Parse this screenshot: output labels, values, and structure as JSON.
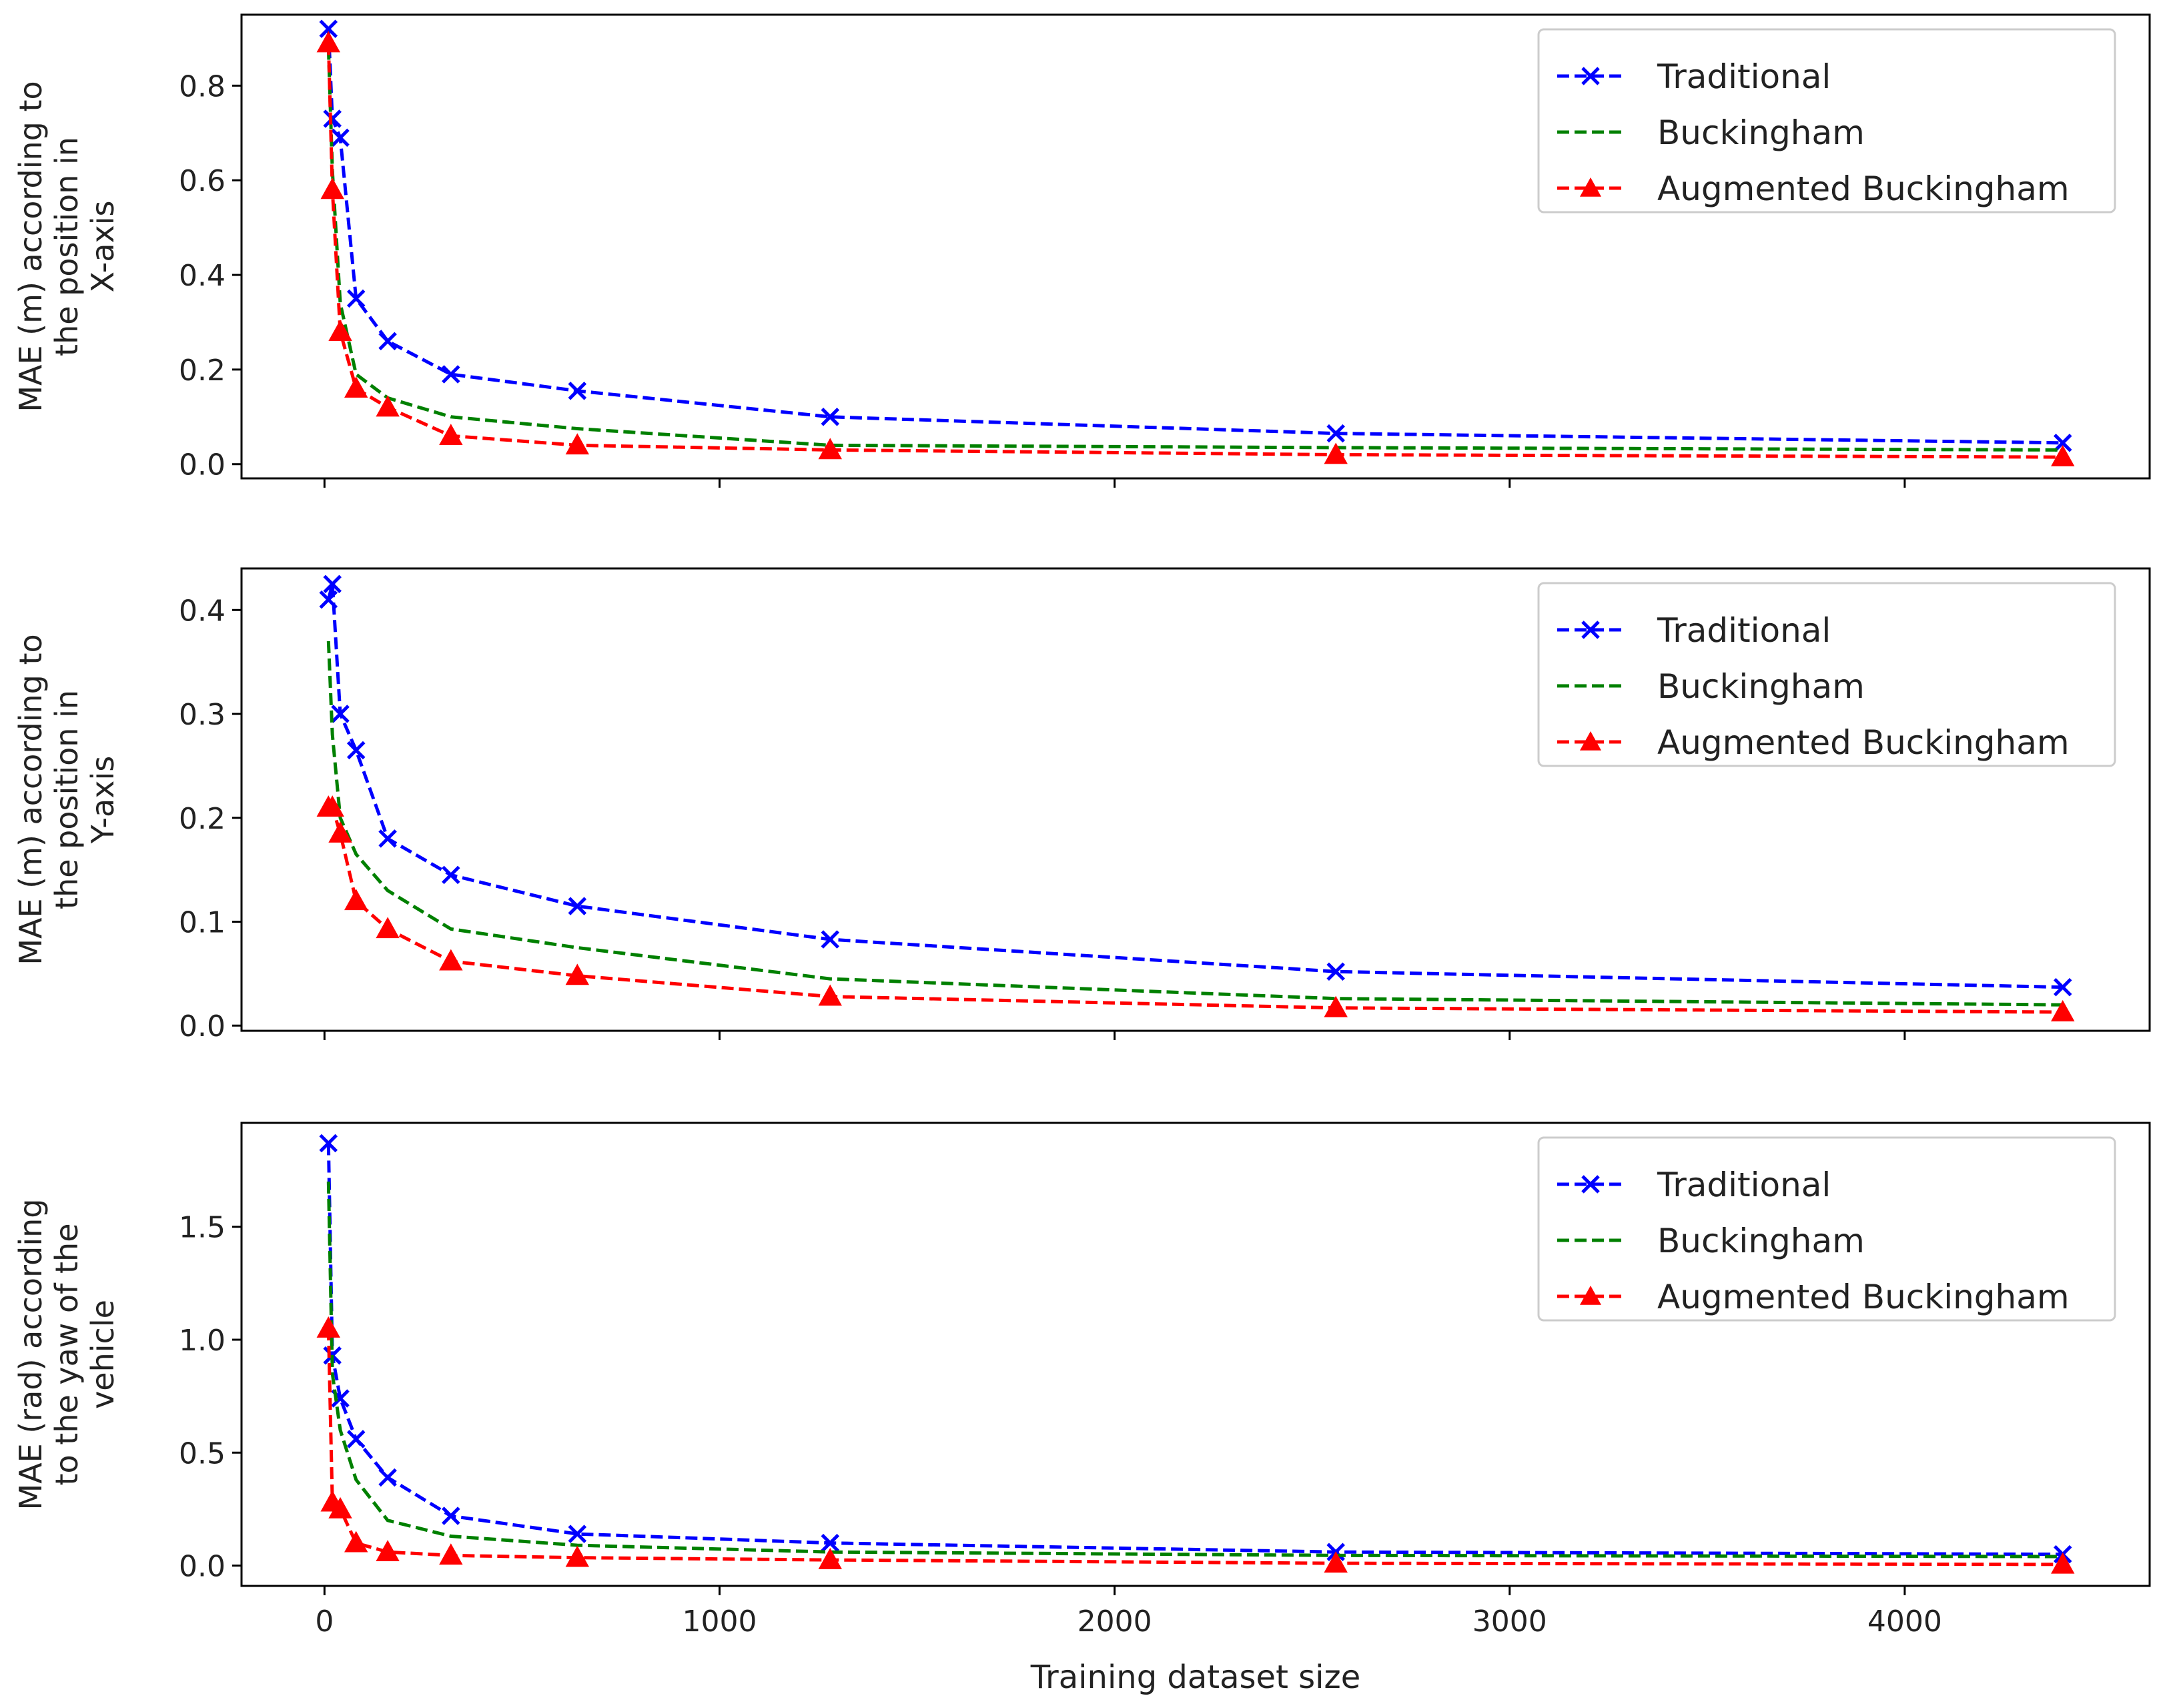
{
  "chart_data": [
    {
      "type": "line",
      "ylabel": [
        "MAE (m) according to",
        "the position in",
        "X-axis"
      ],
      "ylim": [
        -0.03,
        0.95
      ],
      "yticks": [
        "0.0",
        "0.2",
        "0.4",
        "0.6",
        "0.8"
      ],
      "show_xlabel": false,
      "series": [
        {
          "name": "Traditional",
          "color": "#0000ff",
          "marker": "x",
          "x": [
            10,
            20,
            40,
            80,
            160,
            320,
            640,
            1280,
            2560,
            4400
          ],
          "y": [
            0.92,
            0.73,
            0.69,
            0.35,
            0.26,
            0.19,
            0.155,
            0.1,
            0.065,
            0.045
          ]
        },
        {
          "name": "Buckingham",
          "color": "#008000",
          "marker": "none",
          "x": [
            10,
            20,
            40,
            80,
            160,
            320,
            640,
            1280,
            2560,
            4400
          ],
          "y": [
            0.88,
            0.62,
            0.34,
            0.19,
            0.14,
            0.1,
            0.075,
            0.04,
            0.035,
            0.03
          ]
        },
        {
          "name": "Augmented Buckingham",
          "color": "#ff0000",
          "marker": "triangle",
          "x": [
            10,
            20,
            40,
            80,
            160,
            320,
            640,
            1280,
            2560,
            4400
          ],
          "y": [
            0.89,
            0.58,
            0.28,
            0.16,
            0.12,
            0.06,
            0.04,
            0.03,
            0.02,
            0.015
          ]
        }
      ]
    },
    {
      "type": "line",
      "ylabel": [
        "MAE (m) according to",
        "the position in",
        "Y-axis"
      ],
      "ylim": [
        -0.005,
        0.44
      ],
      "yticks": [
        "0.0",
        "0.1",
        "0.2",
        "0.3",
        "0.4"
      ],
      "show_xlabel": false,
      "series": [
        {
          "name": "Traditional",
          "color": "#0000ff",
          "marker": "x",
          "x": [
            10,
            20,
            40,
            80,
            160,
            320,
            640,
            1280,
            2560,
            4400
          ],
          "y": [
            0.41,
            0.425,
            0.3,
            0.265,
            0.18,
            0.145,
            0.115,
            0.083,
            0.052,
            0.037
          ]
        },
        {
          "name": "Buckingham",
          "color": "#008000",
          "marker": "none",
          "x": [
            10,
            20,
            40,
            80,
            160,
            320,
            640,
            1280,
            2560,
            4400
          ],
          "y": [
            0.37,
            0.28,
            0.2,
            0.165,
            0.13,
            0.093,
            0.075,
            0.045,
            0.026,
            0.02
          ]
        },
        {
          "name": "Augmented Buckingham",
          "color": "#ff0000",
          "marker": "triangle",
          "x": [
            10,
            20,
            40,
            80,
            160,
            320,
            640,
            1280,
            2560,
            4400
          ],
          "y": [
            0.21,
            0.21,
            0.185,
            0.12,
            0.093,
            0.062,
            0.048,
            0.028,
            0.017,
            0.013
          ]
        }
      ]
    },
    {
      "type": "line",
      "ylabel": [
        "MAE (rad) according",
        "to the yaw of the",
        "vehicle"
      ],
      "ylim": [
        -0.09,
        1.96
      ],
      "yticks": [
        "0.0",
        "0.5",
        "1.0",
        "1.5"
      ],
      "show_xlabel": true,
      "series": [
        {
          "name": "Traditional",
          "color": "#0000ff",
          "marker": "x",
          "x": [
            10,
            20,
            40,
            80,
            160,
            320,
            640,
            1280,
            2560,
            4400
          ],
          "y": [
            1.87,
            0.93,
            0.74,
            0.56,
            0.39,
            0.22,
            0.14,
            0.1,
            0.06,
            0.05
          ]
        },
        {
          "name": "Buckingham",
          "color": "#008000",
          "marker": "none",
          "x": [
            10,
            20,
            40,
            80,
            160,
            320,
            640,
            1280,
            2560,
            4400
          ],
          "y": [
            1.7,
            0.85,
            0.6,
            0.38,
            0.2,
            0.13,
            0.09,
            0.06,
            0.045,
            0.04
          ]
        },
        {
          "name": "Augmented Buckingham",
          "color": "#ff0000",
          "marker": "triangle",
          "x": [
            10,
            20,
            40,
            80,
            160,
            320,
            640,
            1280,
            2560,
            4400
          ],
          "y": [
            1.05,
            0.28,
            0.25,
            0.1,
            0.06,
            0.045,
            0.035,
            0.025,
            0.01,
            0.005
          ]
        }
      ]
    }
  ],
  "shared": {
    "xlim": [
      -210,
      4620
    ],
    "xticks": [
      0,
      1000,
      2000,
      3000,
      4000
    ],
    "xtick_labels": [
      "0",
      "1000",
      "2000",
      "3000",
      "4000"
    ],
    "xlabel": "Training dataset size"
  }
}
